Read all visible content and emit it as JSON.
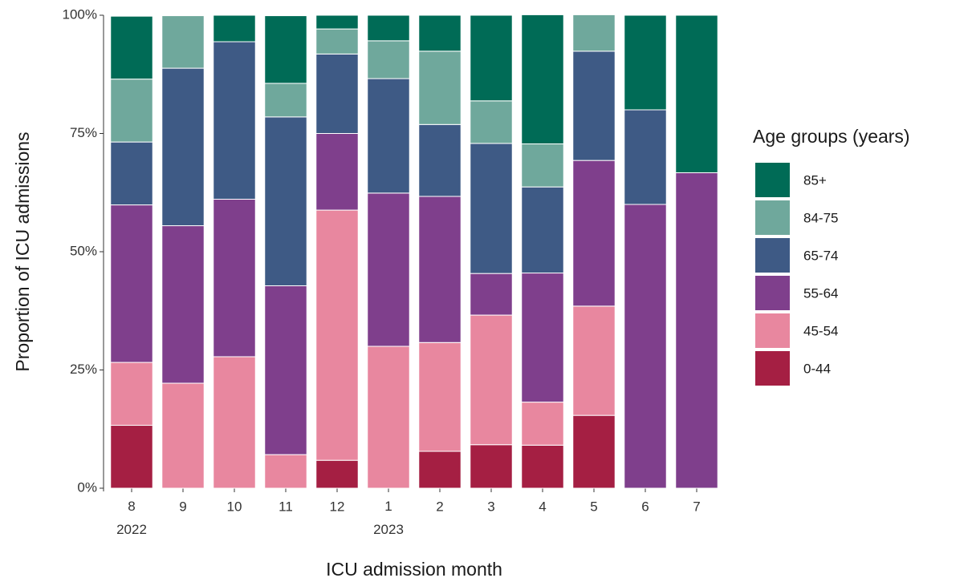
{
  "chart_data": {
    "type": "stacked_bar",
    "x_label": "ICU admission month",
    "y_label": "Proportion of ICU admissions",
    "legend_title": "Age groups (years)",
    "legend_position": "right",
    "categories": [
      "8\n2022",
      "9",
      "10",
      "11",
      "12",
      "1\n2023",
      "2",
      "3",
      "4",
      "5",
      "6",
      "7"
    ],
    "series": [
      {
        "name": "0-44",
        "color": "#a51f43",
        "values": [
          13.3,
          0,
          0,
          0,
          5.9,
          0,
          7.8,
          9.2,
          9.1,
          15.4,
          0,
          0
        ]
      },
      {
        "name": "45-54",
        "color": "#e8879f",
        "values": [
          13.3,
          22.2,
          27.8,
          7.1,
          52.9,
          30,
          23,
          27.4,
          9.1,
          23.1,
          0,
          0
        ]
      },
      {
        "name": "55-64",
        "color": "#7f3f8c",
        "values": [
          33.3,
          33.3,
          33.3,
          35.7,
          16.2,
          32.4,
          30.9,
          8.8,
          27.3,
          30.8,
          60,
          66.7
        ]
      },
      {
        "name": "65-74",
        "color": "#3e5a85",
        "values": [
          13.3,
          33.3,
          33.3,
          35.7,
          16.8,
          24.2,
          15.2,
          27.5,
          18.2,
          23.1,
          20,
          0
        ]
      },
      {
        "name": "84-75",
        "color": "#6fa89c",
        "values": [
          13.3,
          11.1,
          0,
          7.1,
          5.3,
          8,
          15.5,
          9,
          9.1,
          7.7,
          0,
          0
        ]
      },
      {
        "name": "85+",
        "color": "#006b56",
        "values": [
          13.3,
          0,
          5.6,
          14.3,
          2.9,
          5.4,
          7.6,
          18.1,
          27.3,
          0,
          20,
          33.3
        ]
      }
    ],
    "ylim": [
      0,
      100
    ],
    "yticks": [
      {
        "value": 0,
        "label": "0%"
      },
      {
        "value": 25,
        "label": "25%"
      },
      {
        "value": 50,
        "label": "50%"
      },
      {
        "value": 75,
        "label": "75%"
      },
      {
        "value": 100,
        "label": "100%"
      }
    ],
    "grid": false
  }
}
